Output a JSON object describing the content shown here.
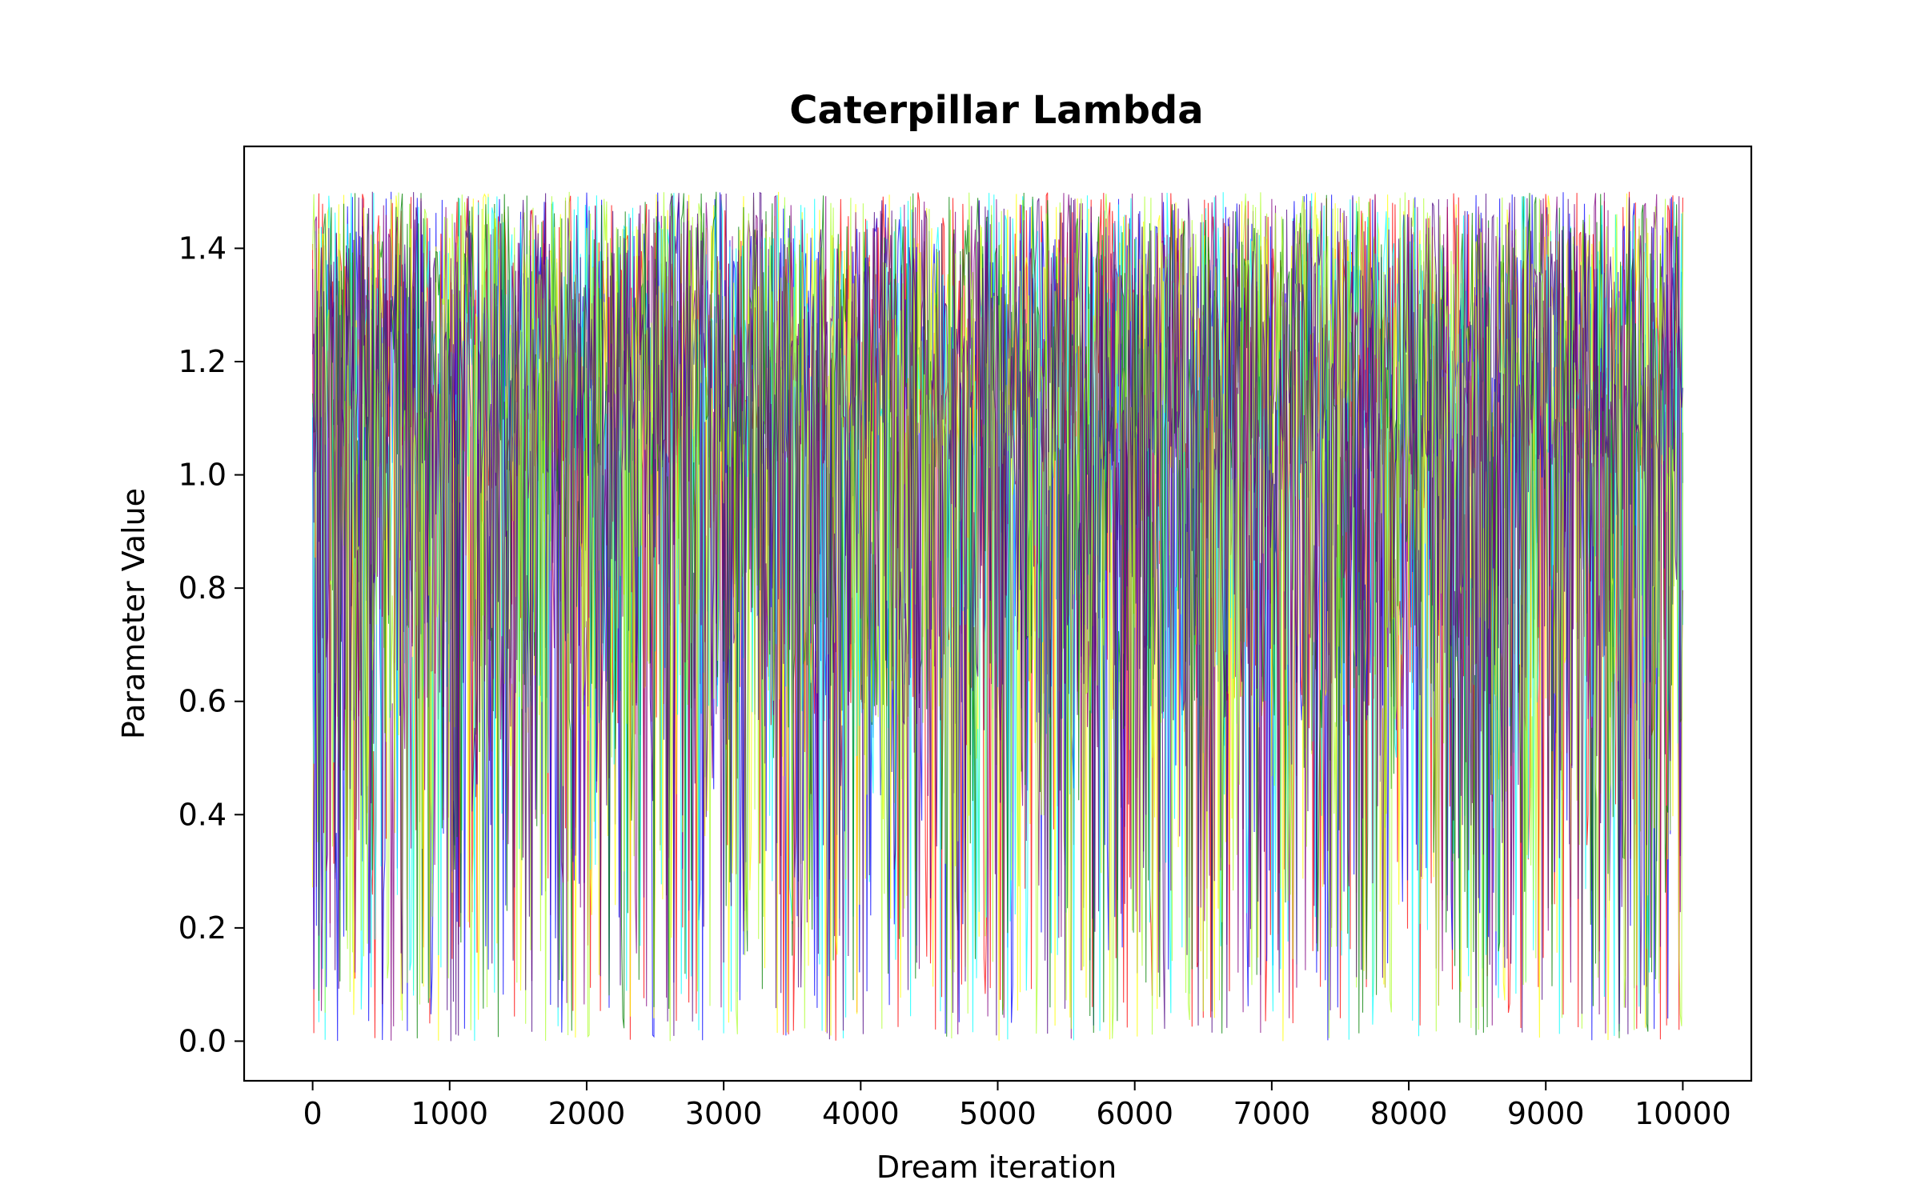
{
  "chart_data": {
    "type": "line",
    "title": "Caterpillar Lambda",
    "xlabel": "Dream iteration",
    "ylabel": "Parameter Value",
    "xlim": [
      -500,
      10500
    ],
    "ylim": [
      -0.07,
      1.58
    ],
    "xticks": [
      0,
      1000,
      2000,
      3000,
      4000,
      5000,
      6000,
      7000,
      8000,
      9000,
      10000
    ],
    "yticks": [
      0.0,
      0.2,
      0.4,
      0.6,
      0.8,
      1.0,
      1.2,
      1.4
    ],
    "ytick_labels": [
      "0.0",
      "0.2",
      "0.4",
      "0.6",
      "0.8",
      "1.0",
      "1.2",
      "1.4"
    ],
    "x_range": [
      0,
      10000
    ],
    "value_range": [
      0.0,
      1.5
    ],
    "legend": "none",
    "grid": false,
    "series": [
      {
        "color": "#ff0000"
      },
      {
        "color": "#0000ff"
      },
      {
        "color": "#ffff00"
      },
      {
        "color": "#00ffff"
      },
      {
        "color": "#008000"
      },
      {
        "color": "#800080"
      },
      {
        "color": "#adff2f"
      },
      {
        "color": "#4b0082"
      }
    ]
  }
}
